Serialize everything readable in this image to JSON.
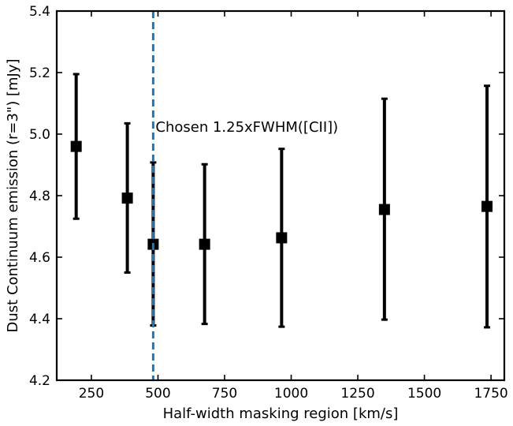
{
  "chart_data": {
    "type": "scatter",
    "xlabel": "Half-width masking region [km/s]",
    "ylabel": "Dust Continuum emission (r=3\") [mJy]",
    "xlim": [
      120,
      1800
    ],
    "ylim": [
      4.2,
      5.4
    ],
    "xticks": [
      250,
      500,
      750,
      1000,
      1250,
      1500,
      1750
    ],
    "yticks": [
      4.2,
      4.4,
      4.6,
      4.8,
      5.0,
      5.2,
      5.4
    ],
    "xtick_labels": [
      "250",
      "500",
      "750",
      "1000",
      "1250",
      "1500",
      "1750"
    ],
    "ytick_labels": [
      "4.2",
      "4.4",
      "4.6",
      "4.8",
      "5.0",
      "5.2",
      "5.4"
    ],
    "grid": false,
    "series": [
      {
        "marker": "square",
        "color": "#000000",
        "points": [
          {
            "x": 193,
            "y": 4.96,
            "yerr_low": 4.725,
            "yerr_high": 5.195
          },
          {
            "x": 385,
            "y": 4.792,
            "yerr_low": 4.55,
            "yerr_high": 5.035
          },
          {
            "x": 482,
            "y": 4.642,
            "yerr_low": 4.378,
            "yerr_high": 4.908
          },
          {
            "x": 675,
            "y": 4.642,
            "yerr_low": 4.383,
            "yerr_high": 4.902
          },
          {
            "x": 964,
            "y": 4.663,
            "yerr_low": 4.374,
            "yerr_high": 4.952
          },
          {
            "x": 1350,
            "y": 4.755,
            "yerr_low": 4.397,
            "yerr_high": 5.115
          },
          {
            "x": 1735,
            "y": 4.765,
            "yerr_low": 4.372,
            "yerr_high": 5.157
          }
        ]
      }
    ],
    "vline": {
      "x": 482,
      "color": "#1f77b4",
      "style": "dashed"
    },
    "annotation": {
      "text": "Chosen 1.25xFWHM([CII])"
    }
  }
}
